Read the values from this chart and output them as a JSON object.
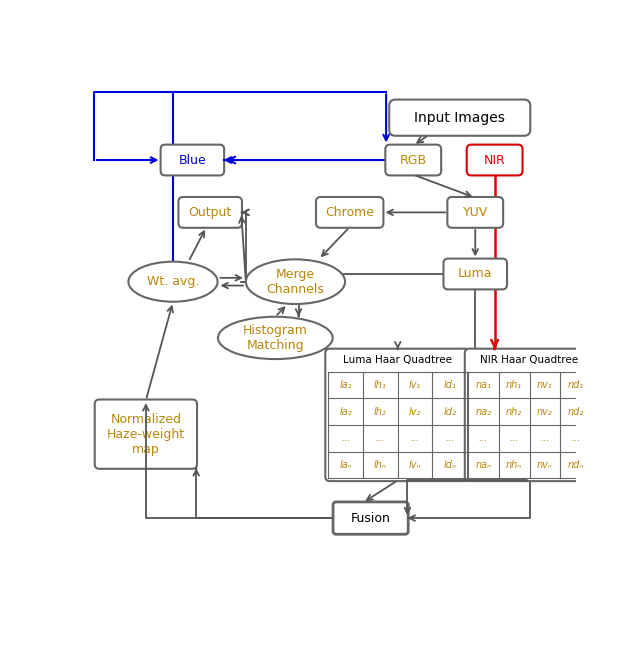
{
  "bg_color": "#ffffff",
  "text_color": "#b8860b",
  "box_edge_color": "#666666",
  "arrow_color": "#555555",
  "blue_color": "#0000dd",
  "red_color": "#dd0000",
  "luma_labels": [
    [
      "la₁",
      "lh₁",
      "lv₁",
      "ld₁"
    ],
    [
      "la₂",
      "lh₂",
      "lv₂",
      "ld₂"
    ],
    [
      "...",
      "...",
      "...",
      "..."
    ],
    [
      "laₙ",
      "lhₙ",
      "lvₙ",
      "ldₙ"
    ]
  ],
  "nir_labels": [
    [
      "na₁",
      "nh₁",
      "nv₁",
      "nd₁"
    ],
    [
      "na₂",
      "nh₂",
      "nv₂",
      "nd₂"
    ],
    [
      "...",
      "...",
      "...",
      "..."
    ],
    [
      "naₙ",
      "nhₙ",
      "nvₙ",
      "ndₙ"
    ]
  ]
}
